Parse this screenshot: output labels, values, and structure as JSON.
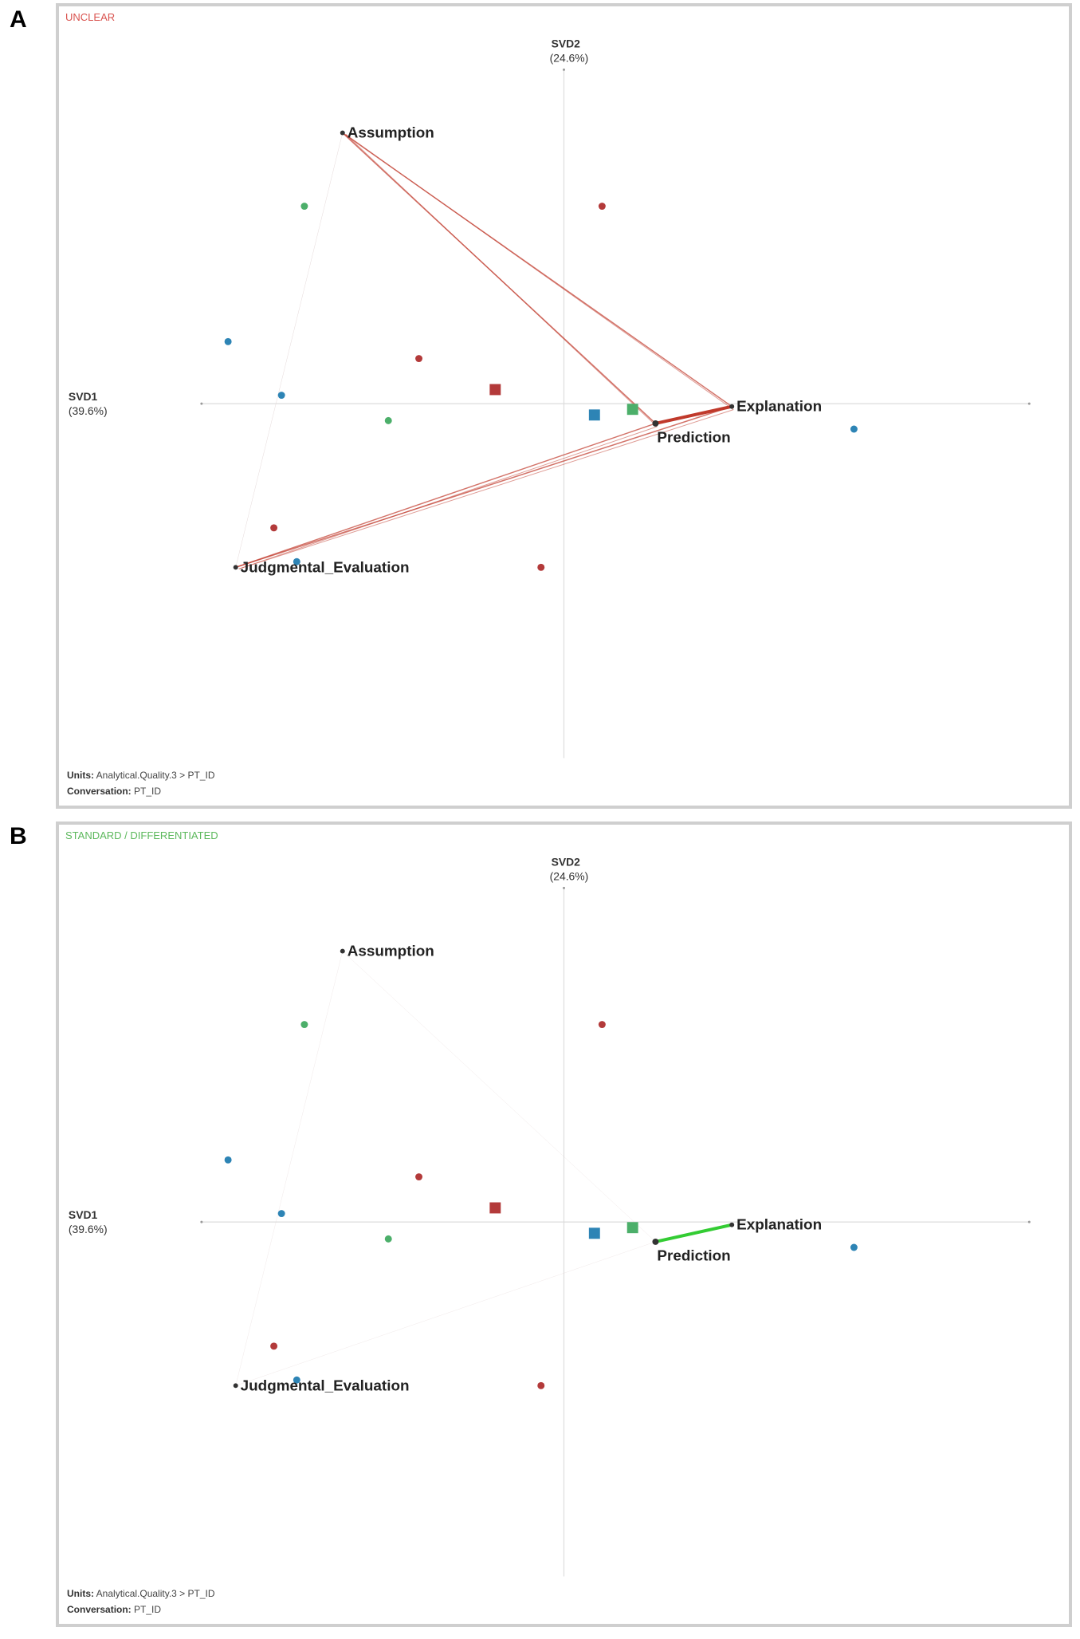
{
  "colors": {
    "unclear_network": "#c0392b",
    "standard_network": "#33cc33",
    "red_point": "#b33a3a",
    "green_point": "#4caf6a",
    "blue_point": "#2d84b5",
    "axis": "#dcdcdc",
    "label_unclear": "#d9534f",
    "label_standard": "#5cb85c"
  },
  "icons": [
    "zoom-in-icon",
    "zoom-out-icon",
    "recenter-icon"
  ],
  "panels": [
    {
      "letter": "A",
      "group_label": "UNCLEAR",
      "units_label": "Units:",
      "units_value": "Analytical.Quality.3 > PT_ID",
      "conversation_label": "Conversation:",
      "conversation_value": "PT_ID"
    },
    {
      "letter": "B",
      "group_label": "STANDARD / DIFFERENTIATED",
      "units_label": "Units:",
      "units_value": "Analytical.Quality.3 > PT_ID",
      "conversation_label": "Conversation:",
      "conversation_value": "PT_ID"
    }
  ],
  "chart_data": [
    {
      "type": "scatter",
      "title": "UNCLEAR",
      "xlabel": "SVD1",
      "xlabel_pct": "(39.6%)",
      "ylabel": "SVD2",
      "ylabel_pct": "(24.6%)",
      "xlim": [
        -0.62,
        0.62
      ],
      "ylim": [
        -0.6,
        0.62
      ],
      "grid": false,
      "nodes": [
        {
          "name": "Assumption",
          "x": -0.29,
          "y": 0.48
        },
        {
          "name": "Explanation",
          "x": 0.22,
          "y": -0.005
        },
        {
          "name": "Prediction",
          "x": 0.12,
          "y": -0.035
        },
        {
          "name": "Judgmental_Evaluation",
          "x": -0.43,
          "y": -0.29
        }
      ],
      "edges": [
        {
          "source": "Explanation",
          "target": "Prediction",
          "weight": 4
        },
        {
          "source": "Assumption",
          "target": "Explanation",
          "weight": 1.5
        },
        {
          "source": "Assumption",
          "target": "Prediction",
          "weight": 1.5
        },
        {
          "source": "Judgmental_Evaluation",
          "target": "Explanation",
          "weight": 1.5
        },
        {
          "source": "Judgmental_Evaluation",
          "target": "Prediction",
          "weight": 1.5
        },
        {
          "source": "Assumption",
          "target": "Judgmental_Evaluation",
          "weight": 0.5
        }
      ],
      "points": [
        {
          "x": -0.34,
          "y": 0.35,
          "group": "green"
        },
        {
          "x": 0.05,
          "y": 0.35,
          "group": "red"
        },
        {
          "x": -0.44,
          "y": 0.11,
          "group": "blue"
        },
        {
          "x": -0.19,
          "y": 0.08,
          "group": "red"
        },
        {
          "x": -0.37,
          "y": 0.015,
          "group": "blue"
        },
        {
          "x": -0.23,
          "y": -0.03,
          "group": "green"
        },
        {
          "x": 0.38,
          "y": -0.045,
          "group": "blue"
        },
        {
          "x": -0.38,
          "y": -0.22,
          "group": "red"
        },
        {
          "x": -0.35,
          "y": -0.28,
          "group": "blue"
        },
        {
          "x": -0.03,
          "y": -0.29,
          "group": "red"
        }
      ],
      "means": [
        {
          "x": -0.09,
          "y": 0.025,
          "group": "red"
        },
        {
          "x": 0.04,
          "y": -0.02,
          "group": "blue"
        },
        {
          "x": 0.09,
          "y": -0.01,
          "group": "green"
        }
      ]
    },
    {
      "type": "scatter",
      "title": "STANDARD / DIFFERENTIATED",
      "xlabel": "SVD1",
      "xlabel_pct": "(39.6%)",
      "ylabel": "SVD2",
      "ylabel_pct": "(24.6%)",
      "xlim": [
        -0.62,
        0.62
      ],
      "ylim": [
        -0.6,
        0.62
      ],
      "grid": false,
      "nodes": [
        {
          "name": "Assumption",
          "x": -0.29,
          "y": 0.48
        },
        {
          "name": "Explanation",
          "x": 0.22,
          "y": -0.005
        },
        {
          "name": "Prediction",
          "x": 0.12,
          "y": -0.035
        },
        {
          "name": "Judgmental_Evaluation",
          "x": -0.43,
          "y": -0.29
        }
      ],
      "edges": [
        {
          "source": "Explanation",
          "target": "Prediction",
          "weight": 4
        },
        {
          "source": "Assumption",
          "target": "Prediction",
          "weight": 0.3
        },
        {
          "source": "Judgmental_Evaluation",
          "target": "Prediction",
          "weight": 0.3
        },
        {
          "source": "Assumption",
          "target": "Judgmental_Evaluation",
          "weight": 0.3
        }
      ],
      "points": [
        {
          "x": -0.34,
          "y": 0.35,
          "group": "green"
        },
        {
          "x": 0.05,
          "y": 0.35,
          "group": "red"
        },
        {
          "x": -0.44,
          "y": 0.11,
          "group": "blue"
        },
        {
          "x": -0.19,
          "y": 0.08,
          "group": "red"
        },
        {
          "x": -0.37,
          "y": 0.015,
          "group": "blue"
        },
        {
          "x": -0.23,
          "y": -0.03,
          "group": "green"
        },
        {
          "x": 0.38,
          "y": -0.045,
          "group": "blue"
        },
        {
          "x": -0.38,
          "y": -0.22,
          "group": "red"
        },
        {
          "x": -0.35,
          "y": -0.28,
          "group": "blue"
        },
        {
          "x": -0.03,
          "y": -0.29,
          "group": "red"
        }
      ],
      "means": [
        {
          "x": -0.09,
          "y": 0.025,
          "group": "red"
        },
        {
          "x": 0.04,
          "y": -0.02,
          "group": "blue"
        },
        {
          "x": 0.09,
          "y": -0.01,
          "group": "green"
        }
      ]
    }
  ]
}
